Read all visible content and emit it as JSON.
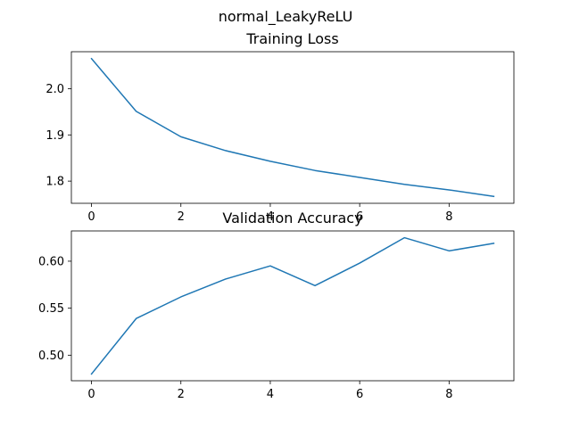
{
  "figure": {
    "suptitle": "normal_LeakyReLU",
    "line_color": "#1f77b4"
  },
  "chart_data": [
    {
      "type": "line",
      "title": "Training Loss",
      "xlabel": "",
      "ylabel": "",
      "x": [
        0,
        1,
        2,
        3,
        4,
        5,
        6,
        7,
        8,
        9
      ],
      "series": [
        {
          "values": [
            2.065,
            1.951,
            1.896,
            1.866,
            1.843,
            1.823,
            1.808,
            1.793,
            1.781,
            1.767
          ]
        }
      ],
      "xlim": [
        -0.45,
        9.45
      ],
      "ylim": [
        1.752,
        2.08
      ],
      "xticks": [
        0,
        2,
        4,
        6,
        8
      ],
      "xtick_labels": [
        "0",
        "2",
        "4",
        "6",
        "8"
      ],
      "yticks": [
        1.8,
        1.9,
        2.0
      ],
      "ytick_labels": [
        "1.8",
        "1.9",
        "2.0"
      ],
      "grid": false,
      "legend": "none"
    },
    {
      "type": "line",
      "title": "Validation Accuracy",
      "xlabel": "",
      "ylabel": "",
      "x": [
        0,
        1,
        2,
        3,
        4,
        5,
        6,
        7,
        8,
        9
      ],
      "series": [
        {
          "values": [
            0.48,
            0.539,
            0.562,
            0.581,
            0.595,
            0.574,
            0.598,
            0.625,
            0.611,
            0.619
          ]
        }
      ],
      "xlim": [
        -0.45,
        9.45
      ],
      "ylim": [
        0.4728,
        0.6322
      ],
      "xticks": [
        0,
        2,
        4,
        6,
        8
      ],
      "xtick_labels": [
        "0",
        "2",
        "4",
        "6",
        "8"
      ],
      "yticks": [
        0.5,
        0.55,
        0.6
      ],
      "ytick_labels": [
        "0.50",
        "0.55",
        "0.60"
      ],
      "grid": false,
      "legend": "none"
    }
  ]
}
